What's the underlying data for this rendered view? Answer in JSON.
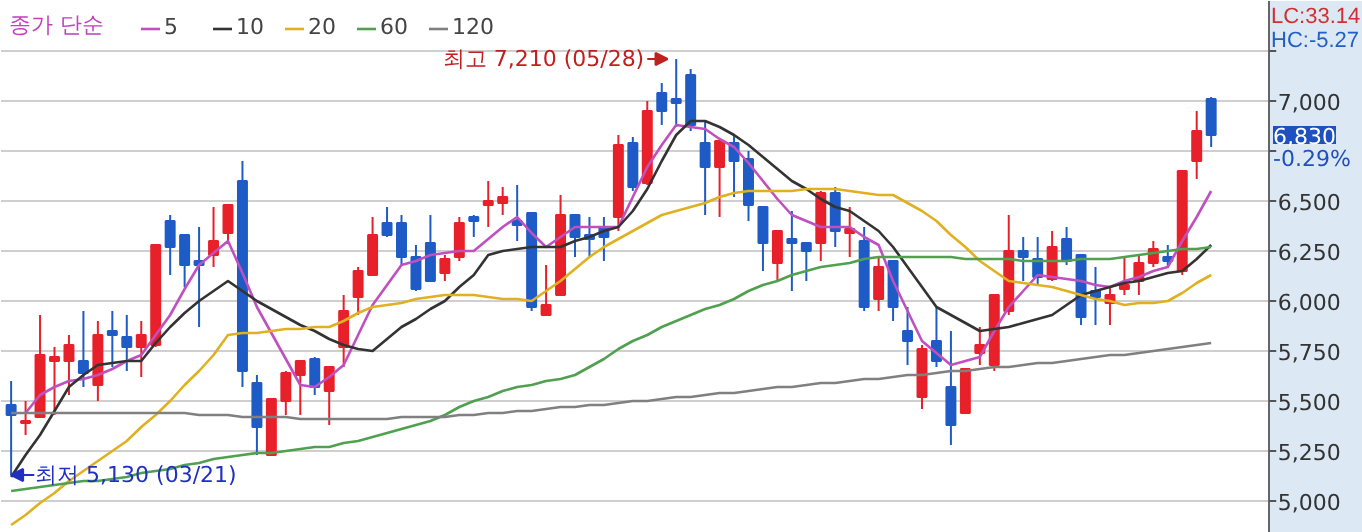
{
  "chart_data": {
    "type": "candlestick",
    "categories": [
      null,
      null,
      null,
      null,
      null,
      null,
      null,
      null,
      null,
      null,
      null,
      null,
      null,
      null,
      null,
      null,
      null,
      null,
      null,
      null,
      null,
      null,
      null,
      null,
      null,
      null,
      null,
      null,
      null,
      null,
      null,
      null,
      null,
      null,
      null,
      null,
      null,
      null,
      null,
      null,
      null,
      null,
      null,
      null,
      null,
      null,
      null,
      null,
      null,
      null,
      null,
      null,
      null,
      null,
      null,
      null,
      null,
      null,
      null,
      null,
      null,
      null,
      null,
      null,
      null,
      null,
      null,
      null,
      null,
      null,
      null,
      null,
      null,
      null,
      null,
      null,
      null,
      null,
      null,
      null,
      null,
      null,
      null,
      null
    ],
    "ohlc": [
      [
        5480,
        5600,
        5130,
        5430
      ],
      [
        5390,
        5500,
        5330,
        5400
      ],
      [
        5420,
        5930,
        5420,
        5730
      ],
      [
        5700,
        5770,
        5430,
        5720
      ],
      [
        5700,
        5830,
        5530,
        5780
      ],
      [
        5700,
        5950,
        5570,
        5640
      ],
      [
        5580,
        5900,
        5500,
        5830
      ],
      [
        5850,
        5950,
        5670,
        5830
      ],
      [
        5820,
        5930,
        5650,
        5770
      ],
      [
        5770,
        5900,
        5620,
        5830
      ],
      [
        5780,
        6280,
        5770,
        6280
      ],
      [
        6400,
        6430,
        6130,
        6270
      ],
      [
        6330,
        6330,
        6070,
        6180
      ],
      [
        6200,
        6370,
        5870,
        6180
      ],
      [
        6230,
        6470,
        6170,
        6300
      ],
      [
        6340,
        6480,
        6300,
        6480
      ],
      [
        6600,
        6700,
        5570,
        5650
      ],
      [
        5590,
        5630,
        5230,
        5370
      ],
      [
        5230,
        5510,
        5230,
        5510
      ],
      [
        5500,
        5650,
        5430,
        5640
      ],
      [
        5630,
        5700,
        5430,
        5700
      ],
      [
        5710,
        5720,
        5530,
        5570
      ],
      [
        5550,
        5670,
        5380,
        5670
      ],
      [
        5770,
        6030,
        5670,
        5950
      ],
      [
        6020,
        6170,
        5930,
        6150
      ],
      [
        6130,
        6420,
        6130,
        6330
      ],
      [
        6390,
        6470,
        6320,
        6330
      ],
      [
        6390,
        6430,
        6180,
        6220
      ],
      [
        6220,
        6280,
        6050,
        6060
      ],
      [
        6290,
        6430,
        6100,
        6100
      ],
      [
        6140,
        6230,
        6100,
        6210
      ],
      [
        6220,
        6420,
        6200,
        6390
      ],
      [
        6420,
        6430,
        6320,
        6400
      ],
      [
        6480,
        6600,
        6370,
        6500
      ],
      [
        6490,
        6570,
        6430,
        6520
      ],
      [
        6400,
        6580,
        6300,
        6380
      ],
      [
        6440,
        6440,
        5950,
        5970
      ],
      [
        5930,
        6180,
        5930,
        5980
      ],
      [
        6030,
        6530,
        6030,
        6430
      ],
      [
        6430,
        6430,
        6220,
        6320
      ],
      [
        6330,
        6420,
        6220,
        6310
      ],
      [
        6370,
        6420,
        6200,
        6320
      ],
      [
        6420,
        6830,
        6350,
        6780
      ],
      [
        6790,
        6820,
        6550,
        6570
      ],
      [
        6590,
        7000,
        6580,
        6950
      ],
      [
        7040,
        7090,
        6880,
        6950
      ],
      [
        7010,
        7210,
        6870,
        6990
      ],
      [
        7130,
        7160,
        6850,
        6880
      ],
      [
        6790,
        6900,
        6430,
        6670
      ],
      [
        6670,
        6800,
        6420,
        6800
      ],
      [
        6790,
        6830,
        6520,
        6700
      ],
      [
        6710,
        6750,
        6400,
        6480
      ],
      [
        6470,
        6470,
        6150,
        6290
      ],
      [
        6190,
        6350,
        6100,
        6350
      ],
      [
        6310,
        6450,
        6050,
        6290
      ],
      [
        6290,
        6290,
        6100,
        6250
      ],
      [
        6290,
        6550,
        6200,
        6540
      ],
      [
        6540,
        6570,
        6270,
        6350
      ],
      [
        6340,
        6470,
        6220,
        6360
      ],
      [
        6300,
        6370,
        5950,
        5970
      ],
      [
        6010,
        6220,
        5950,
        6170
      ],
      [
        6200,
        6200,
        5900,
        5970
      ],
      [
        5850,
        5970,
        5680,
        5800
      ],
      [
        5520,
        5780,
        5460,
        5760
      ],
      [
        5800,
        5970,
        5670,
        5700
      ],
      [
        5570,
        5850,
        5280,
        5380
      ],
      [
        5440,
        5660,
        5440,
        5660
      ],
      [
        5740,
        5870,
        5680,
        5780
      ],
      [
        5680,
        6030,
        5650,
        6030
      ],
      [
        5950,
        6430,
        5930,
        6250
      ],
      [
        6250,
        6320,
        6100,
        6220
      ],
      [
        6210,
        6320,
        6080,
        6120
      ],
      [
        6110,
        6350,
        6100,
        6270
      ],
      [
        6310,
        6370,
        6180,
        6200
      ],
      [
        6230,
        6230,
        5880,
        5920
      ],
      [
        6050,
        6170,
        5880,
        6020
      ],
      [
        5990,
        6070,
        5880,
        6030
      ],
      [
        6060,
        6220,
        6030,
        6080
      ],
      [
        6100,
        6230,
        6030,
        6190
      ],
      [
        6190,
        6300,
        6170,
        6260
      ],
      [
        6220,
        6280,
        6170,
        6200
      ],
      [
        6150,
        6650,
        6130,
        6650
      ],
      [
        6700,
        6950,
        6610,
        6850
      ],
      [
        7010,
        7020,
        6770,
        6830
      ]
    ],
    "colors": [
      "#1e5bc6",
      "#e8202a",
      "#e8202a",
      "#e8202a",
      "#e8202a",
      "#1e5bc6",
      "#e8202a",
      "#1e5bc6",
      "#1e5bc6",
      "#e8202a",
      "#e8202a",
      "#1e5bc6",
      "#1e5bc6",
      "#1e5bc6",
      "#e8202a",
      "#e8202a",
      "#1e5bc6",
      "#1e5bc6",
      "#e8202a",
      "#e8202a",
      "#e8202a",
      "#1e5bc6",
      "#e8202a",
      "#e8202a",
      "#e8202a",
      "#e8202a",
      "#1e5bc6",
      "#1e5bc6",
      "#1e5bc6",
      "#1e5bc6",
      "#e8202a",
      "#e8202a",
      "#1e5bc6",
      "#e8202a",
      "#e8202a",
      "#1e5bc6",
      "#1e5bc6",
      "#e8202a",
      "#e8202a",
      "#1e5bc6",
      "#1e5bc6",
      "#1e5bc6",
      "#e8202a",
      "#1e5bc6",
      "#e8202a",
      "#1e5bc6",
      "#1e5bc6",
      "#1e5bc6",
      "#1e5bc6",
      "#e8202a",
      "#1e5bc6",
      "#1e5bc6",
      "#1e5bc6",
      "#e8202a",
      "#1e5bc6",
      "#1e5bc6",
      "#e8202a",
      "#1e5bc6",
      "#e8202a",
      "#1e5bc6",
      "#e8202a",
      "#1e5bc6",
      "#1e5bc6",
      "#e8202a",
      "#1e5bc6",
      "#1e5bc6",
      "#e8202a",
      "#e8202a",
      "#e8202a",
      "#e8202a",
      "#1e5bc6",
      "#1e5bc6",
      "#e8202a",
      "#1e5bc6",
      "#1e5bc6",
      "#1e5bc6",
      "#e8202a",
      "#e8202a",
      "#e8202a",
      "#e8202a",
      "#1e5bc6",
      "#e8202a",
      "#e8202a",
      "#1e5bc6"
    ],
    "series": [
      {
        "name": "5",
        "type": "line",
        "color": "#c050c0",
        "values": [
          null,
          5440,
          5530,
          5570,
          5600,
          5610,
          5630,
          5660,
          5700,
          5730,
          5830,
          5930,
          6060,
          6180,
          6240,
          6300,
          6140,
          5970,
          5840,
          5710,
          5580,
          5570,
          5620,
          5680,
          5830,
          5980,
          6080,
          6180,
          6200,
          6230,
          6240,
          6250,
          6250,
          6310,
          6370,
          6420,
          6340,
          6270,
          6320,
          6370,
          6370,
          6370,
          6370,
          6520,
          6670,
          6780,
          6880,
          6870,
          6860,
          6810,
          6770,
          6690,
          6600,
          6510,
          6430,
          6400,
          6370,
          6370,
          6370,
          6320,
          6280,
          6100,
          5950,
          5800,
          5740,
          5680,
          5700,
          5720,
          5850,
          5970,
          6050,
          6130,
          6120,
          6110,
          6100,
          6080,
          6070,
          6100,
          6120,
          6150,
          6170,
          6300,
          6420,
          6550
        ]
      },
      {
        "name": "10",
        "type": "line",
        "color": "#333333",
        "values": [
          5120,
          5230,
          5330,
          5450,
          5570,
          5630,
          5680,
          5690,
          5700,
          5700,
          5790,
          5870,
          5940,
          6000,
          6050,
          6100,
          6050,
          6000,
          5960,
          5920,
          5880,
          5850,
          5810,
          5780,
          5760,
          5750,
          5810,
          5870,
          5910,
          5960,
          6000,
          6070,
          6130,
          6230,
          6250,
          6260,
          6270,
          6270,
          6270,
          6300,
          6320,
          6350,
          6370,
          6450,
          6560,
          6700,
          6830,
          6900,
          6900,
          6870,
          6830,
          6780,
          6720,
          6660,
          6600,
          6560,
          6510,
          6470,
          6450,
          6400,
          6350,
          6270,
          6170,
          6070,
          5970,
          5930,
          5890,
          5850,
          5860,
          5870,
          5890,
          5910,
          5930,
          5980,
          6030,
          6050,
          6070,
          6090,
          6100,
          6120,
          6140,
          6150,
          6210,
          6280
        ]
      },
      {
        "name": "20",
        "type": "line",
        "color": "#e0b020",
        "values": [
          4880,
          4930,
          4990,
          5040,
          5100,
          5150,
          5200,
          5250,
          5300,
          5370,
          5430,
          5500,
          5580,
          5650,
          5730,
          5830,
          5840,
          5840,
          5850,
          5860,
          5860,
          5870,
          5870,
          5900,
          5940,
          5970,
          5980,
          5990,
          6010,
          6020,
          6030,
          6030,
          6030,
          6020,
          6010,
          6010,
          6000,
          6050,
          6100,
          6160,
          6220,
          6270,
          6310,
          6350,
          6390,
          6430,
          6450,
          6470,
          6490,
          6520,
          6540,
          6550,
          6550,
          6550,
          6550,
          6560,
          6560,
          6560,
          6550,
          6540,
          6530,
          6530,
          6490,
          6450,
          6400,
          6330,
          6270,
          6200,
          6150,
          6100,
          6090,
          6080,
          6070,
          6050,
          6030,
          6010,
          6000,
          5980,
          5990,
          5990,
          6000,
          6040,
          6090,
          6130
        ]
      },
      {
        "name": "60",
        "type": "line",
        "color": "#50a050",
        "values": [
          5050,
          5060,
          5070,
          5080,
          5090,
          5100,
          5100,
          5110,
          5120,
          5140,
          5150,
          5160,
          5180,
          5190,
          5210,
          5220,
          5230,
          5240,
          5240,
          5250,
          5260,
          5270,
          5270,
          5290,
          5300,
          5320,
          5340,
          5360,
          5380,
          5400,
          5430,
          5470,
          5500,
          5520,
          5550,
          5570,
          5580,
          5600,
          5610,
          5630,
          5670,
          5710,
          5760,
          5800,
          5830,
          5870,
          5900,
          5930,
          5960,
          5980,
          6010,
          6050,
          6080,
          6100,
          6130,
          6150,
          6170,
          6180,
          6190,
          6210,
          6220,
          6220,
          6220,
          6220,
          6220,
          6220,
          6210,
          6210,
          6210,
          6210,
          6200,
          6200,
          6200,
          6200,
          6210,
          6210,
          6210,
          6220,
          6230,
          6240,
          6250,
          6260,
          6260,
          6270
        ]
      },
      {
        "name": "120",
        "type": "line",
        "color": "#808080",
        "values": [
          5440,
          5440,
          5440,
          5440,
          5440,
          5440,
          5440,
          5440,
          5440,
          5440,
          5440,
          5440,
          5440,
          5430,
          5430,
          5430,
          5420,
          5420,
          5420,
          5420,
          5410,
          5410,
          5410,
          5410,
          5410,
          5410,
          5410,
          5420,
          5420,
          5420,
          5420,
          5430,
          5430,
          5440,
          5440,
          5450,
          5450,
          5460,
          5470,
          5470,
          5480,
          5480,
          5490,
          5500,
          5500,
          5510,
          5520,
          5520,
          5530,
          5540,
          5540,
          5550,
          5560,
          5570,
          5570,
          5580,
          5590,
          5590,
          5600,
          5610,
          5610,
          5620,
          5630,
          5630,
          5640,
          5650,
          5650,
          5660,
          5670,
          5670,
          5680,
          5690,
          5690,
          5700,
          5710,
          5720,
          5730,
          5730,
          5740,
          5750,
          5760,
          5770,
          5780,
          5790
        ]
      }
    ],
    "legend_title": "종가 단순",
    "legend": "top left",
    "ylim": [
      4840,
      7500
    ],
    "yticks": [
      {
        "value": 5000,
        "label": "5,000"
      },
      {
        "value": 5250,
        "label": "5,250"
      },
      {
        "value": 5500,
        "label": "5,500"
      },
      {
        "value": 5750,
        "label": "5,750"
      },
      {
        "value": 6000,
        "label": "6,000"
      },
      {
        "value": 6250,
        "label": "6,250"
      },
      {
        "value": 6500,
        "label": "6,500"
      },
      {
        "value": 6750,
        "label": null
      },
      {
        "value": 7000,
        "label": "7,000"
      },
      {
        "value": 7250,
        "label": null
      }
    ],
    "grid": "y",
    "tick_labels": "y",
    "annotations": [
      "LC:33.14",
      "HC:-5.27",
      "최고 7,210 (05/28)",
      "최저 5,130 (03/21)",
      "6,830",
      "-0.29%"
    ]
  }
}
